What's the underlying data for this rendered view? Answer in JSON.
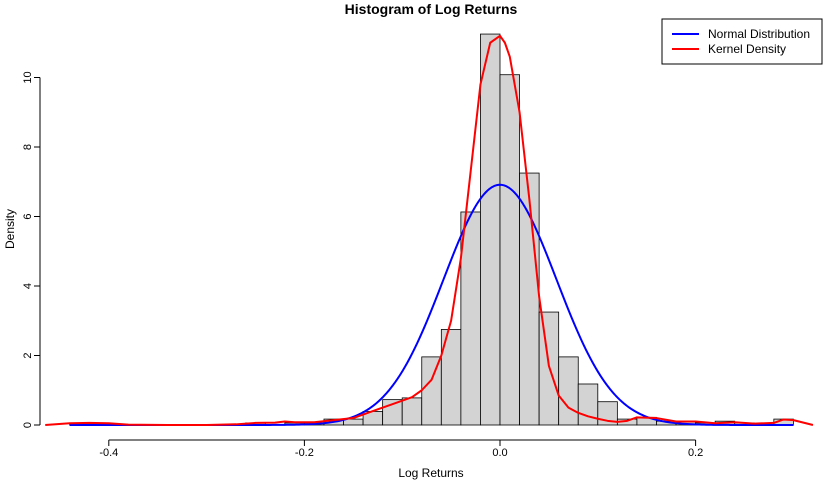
{
  "chart_data": {
    "type": "histogram",
    "title": "Histogram of Log Returns",
    "xlabel": "Log Returns",
    "ylabel": "Density",
    "xlim": [
      -0.46,
      0.32
    ],
    "ylim": [
      0,
      11.3
    ],
    "x_ticks": [
      -0.4,
      -0.2,
      0.0,
      0.2
    ],
    "x_tick_labels": [
      "-0.4",
      "-0.2",
      "0.0",
      "0.2"
    ],
    "y_ticks": [
      0,
      2,
      4,
      6,
      8,
      10
    ],
    "y_tick_labels": [
      "0",
      "2",
      "4",
      "6",
      "8",
      "10"
    ],
    "grid": false,
    "legend_position": "top-right",
    "bins": [
      {
        "x0": -0.44,
        "x1": -0.42,
        "density": 0.06
      },
      {
        "x0": -0.42,
        "x1": -0.4,
        "density": 0.06
      },
      {
        "x0": -0.26,
        "x1": -0.24,
        "density": 0.06
      },
      {
        "x0": -0.22,
        "x1": -0.2,
        "density": 0.06
      },
      {
        "x0": -0.2,
        "x1": -0.18,
        "density": 0.06
      },
      {
        "x0": -0.18,
        "x1": -0.16,
        "density": 0.17
      },
      {
        "x0": -0.16,
        "x1": -0.14,
        "density": 0.17
      },
      {
        "x0": -0.14,
        "x1": -0.12,
        "density": 0.39
      },
      {
        "x0": -0.12,
        "x1": -0.1,
        "density": 0.73
      },
      {
        "x0": -0.1,
        "x1": -0.08,
        "density": 0.78
      },
      {
        "x0": -0.08,
        "x1": -0.06,
        "density": 1.96
      },
      {
        "x0": -0.06,
        "x1": -0.04,
        "density": 2.75
      },
      {
        "x0": -0.04,
        "x1": -0.02,
        "density": 6.13
      },
      {
        "x0": -0.02,
        "x1": 0.0,
        "density": 11.25
      },
      {
        "x0": 0.0,
        "x1": 0.02,
        "density": 10.08
      },
      {
        "x0": 0.02,
        "x1": 0.04,
        "density": 7.25
      },
      {
        "x0": 0.04,
        "x1": 0.06,
        "density": 3.25
      },
      {
        "x0": 0.06,
        "x1": 0.08,
        "density": 1.96
      },
      {
        "x0": 0.08,
        "x1": 0.1,
        "density": 1.18
      },
      {
        "x0": 0.1,
        "x1": 0.12,
        "density": 0.67
      },
      {
        "x0": 0.12,
        "x1": 0.14,
        "density": 0.17
      },
      {
        "x0": 0.14,
        "x1": 0.16,
        "density": 0.22
      },
      {
        "x0": 0.16,
        "x1": 0.18,
        "density": 0.11
      },
      {
        "x0": 0.18,
        "x1": 0.2,
        "density": 0.11
      },
      {
        "x0": 0.2,
        "x1": 0.22,
        "density": 0.06
      },
      {
        "x0": 0.22,
        "x1": 0.24,
        "density": 0.11
      },
      {
        "x0": 0.24,
        "x1": 0.26,
        "density": 0.06
      },
      {
        "x0": 0.28,
        "x1": 0.3,
        "density": 0.17
      }
    ],
    "series": [
      {
        "name": "Normal Distribution",
        "color": "#0000ff",
        "kind": "normal",
        "mean": 0.0,
        "sd": 0.0577,
        "x_range": [
          -0.44,
          0.3
        ]
      },
      {
        "name": "Kernel Density",
        "color": "#ff0000",
        "kind": "kde",
        "x": [
          -0.465,
          -0.44,
          -0.42,
          -0.4,
          -0.38,
          -0.34,
          -0.3,
          -0.27,
          -0.25,
          -0.23,
          -0.22,
          -0.21,
          -0.19,
          -0.17,
          -0.15,
          -0.13,
          -0.11,
          -0.1,
          -0.09,
          -0.08,
          -0.07,
          -0.06,
          -0.05,
          -0.04,
          -0.03,
          -0.02,
          -0.01,
          0.0,
          0.005,
          0.01,
          0.02,
          0.03,
          0.04,
          0.05,
          0.06,
          0.07,
          0.08,
          0.09,
          0.1,
          0.11,
          0.12,
          0.13,
          0.14,
          0.16,
          0.18,
          0.2,
          0.22,
          0.24,
          0.26,
          0.28,
          0.29,
          0.3,
          0.32
        ],
        "y": [
          0.0,
          0.05,
          0.06,
          0.05,
          0.01,
          0.0,
          0.0,
          0.02,
          0.06,
          0.07,
          0.1,
          0.08,
          0.08,
          0.14,
          0.2,
          0.4,
          0.6,
          0.7,
          0.8,
          1.0,
          1.3,
          2.0,
          3.0,
          4.8,
          7.3,
          9.8,
          11.0,
          11.2,
          11.0,
          10.6,
          9.0,
          6.5,
          3.7,
          1.7,
          0.85,
          0.5,
          0.35,
          0.25,
          0.18,
          0.12,
          0.09,
          0.12,
          0.22,
          0.2,
          0.1,
          0.1,
          0.05,
          0.08,
          0.04,
          0.06,
          0.16,
          0.14,
          0.0
        ]
      }
    ]
  }
}
